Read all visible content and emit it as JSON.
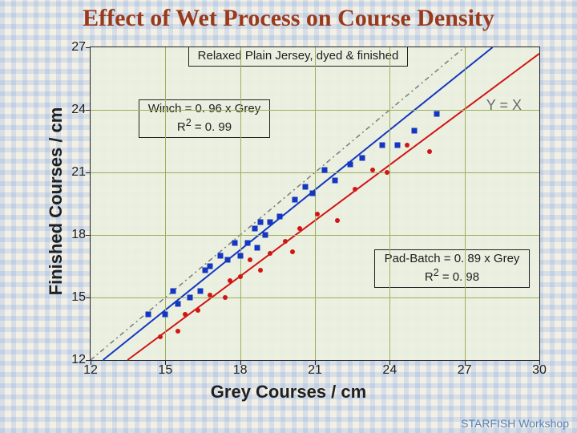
{
  "title": "Effect of Wet Process on Course Density",
  "footer": "STARFISH Workshop",
  "chart": {
    "type": "scatter",
    "xlabel": "Grey Courses / cm",
    "ylabel": "Finished Courses / cm",
    "xlim": [
      12,
      30
    ],
    "ylim": [
      12,
      27
    ],
    "xtick_step": 3,
    "ytick_step": 3,
    "xticks": [
      12,
      15,
      18,
      21,
      24,
      27,
      30
    ],
    "yticks": [
      12,
      15,
      18,
      21,
      24,
      27
    ],
    "background_color": "#ecefdf",
    "grid_color": "#9caf5a",
    "legend_title": "Relaxed Plain Jersey, dyed & finished",
    "annotations": {
      "yx": "Y = X",
      "winch_line1": "Winch = 0. 96 x Grey",
      "winch_line2_a": "R",
      "winch_line2_b": "2",
      "winch_line2_c": " = 0. 99",
      "padbatch_line1": "Pad-Batch = 0. 89 x Grey",
      "padbatch_line2_a": "R",
      "padbatch_line2_b": "2",
      "padbatch_line2_c": " = 0. 98"
    },
    "yx_line": {
      "color": "#7a7a7a",
      "dash": "6 4 2 4",
      "x0": 12,
      "y0": 12,
      "x1": 27,
      "y1": 27
    },
    "series": {
      "winch": {
        "marker": "square",
        "color": "#1436c2",
        "size": 7,
        "fit": {
          "slope": 0.96,
          "intercept": 0,
          "color": "#1436c2",
          "width": 2
        },
        "points": [
          [
            14.3,
            14.2
          ],
          [
            15.0,
            14.2
          ],
          [
            15.3,
            15.3
          ],
          [
            15.5,
            14.7
          ],
          [
            16.0,
            15.0
          ],
          [
            16.4,
            15.3
          ],
          [
            16.6,
            16.3
          ],
          [
            16.8,
            16.5
          ],
          [
            17.2,
            17.0
          ],
          [
            17.5,
            16.8
          ],
          [
            17.8,
            17.6
          ],
          [
            18.0,
            17.0
          ],
          [
            18.3,
            17.6
          ],
          [
            18.6,
            18.3
          ],
          [
            18.7,
            17.4
          ],
          [
            18.8,
            18.6
          ],
          [
            19.0,
            18.0
          ],
          [
            19.2,
            18.6
          ],
          [
            19.6,
            18.9
          ],
          [
            20.2,
            19.7
          ],
          [
            20.6,
            20.3
          ],
          [
            20.9,
            20.0
          ],
          [
            21.4,
            21.1
          ],
          [
            21.8,
            20.6
          ],
          [
            22.4,
            21.4
          ],
          [
            22.9,
            21.7
          ],
          [
            23.7,
            22.3
          ],
          [
            24.3,
            22.3
          ],
          [
            25.0,
            23.0
          ],
          [
            25.9,
            23.8
          ]
        ]
      },
      "padbatch": {
        "marker": "dot",
        "color": "#d11515",
        "size": 6,
        "fit": {
          "slope": 0.89,
          "intercept": 0,
          "color": "#d11515",
          "width": 2
        },
        "points": [
          [
            14.8,
            13.1
          ],
          [
            15.5,
            13.4
          ],
          [
            15.8,
            14.2
          ],
          [
            16.3,
            14.4
          ],
          [
            16.8,
            15.1
          ],
          [
            17.4,
            15.0
          ],
          [
            17.6,
            15.8
          ],
          [
            18.0,
            16.0
          ],
          [
            18.4,
            16.8
          ],
          [
            18.8,
            16.3
          ],
          [
            19.2,
            17.1
          ],
          [
            19.8,
            17.7
          ],
          [
            20.1,
            17.2
          ],
          [
            20.4,
            18.3
          ],
          [
            21.1,
            19.0
          ],
          [
            21.9,
            18.7
          ],
          [
            22.6,
            20.2
          ],
          [
            23.3,
            21.1
          ],
          [
            23.9,
            21.0
          ],
          [
            24.7,
            22.3
          ],
          [
            25.6,
            22.0
          ]
        ]
      }
    }
  }
}
